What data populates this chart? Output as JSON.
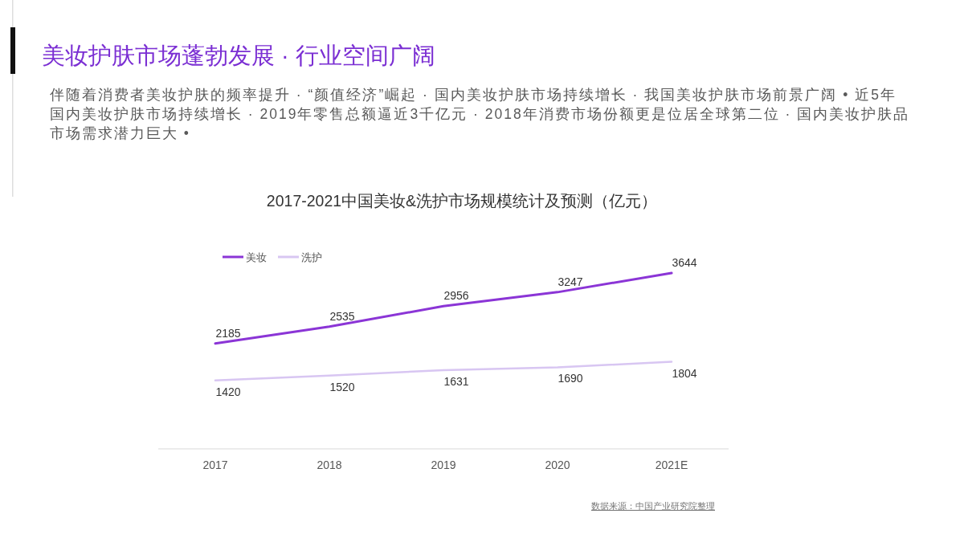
{
  "chart_data": {
    "type": "line",
    "title": "2017-2021中国美妆&洗护市场规模统计及预测（亿元）",
    "categories": [
      "2017",
      "2018",
      "2019",
      "2020",
      "2021E"
    ],
    "series": [
      {
        "name": "美妆",
        "color": "#8b35d6",
        "values": [
          2185,
          2535,
          2956,
          3247,
          3644
        ]
      },
      {
        "name": "洗护",
        "color": "#d8c6f2",
        "values": [
          1420,
          1520,
          1631,
          1690,
          1804
        ]
      }
    ],
    "data_labels": true,
    "legend": "top left",
    "annotations": [
      "美妆护肤市场蓬勃发展 · 行业空间广阔",
      "伴随着消费者美妆护肤的频率提升 · “颜值经济”崛起 · 国内美妆护肤市场持续增长 · 我国美妆护肤市场前景广阔 • 近5年国内美妆护肤市场持续增长 · 2019年零售总额逼近3千亿元 · 2018年消费市场份额更是位居全球第二位 · 国内美妆护肤品市场需求潜力巨大 •",
      "数据来源：中国产业研究院整理"
    ]
  }
}
